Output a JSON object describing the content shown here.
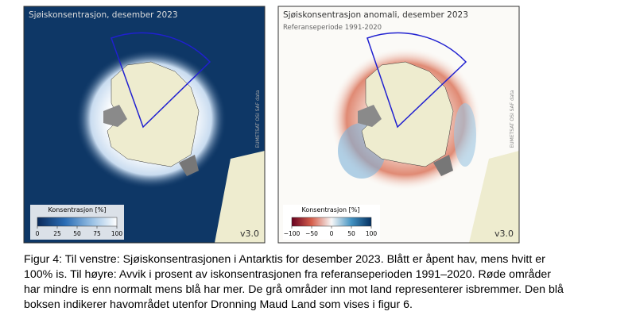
{
  "left_map": {
    "title": "Sjøiskonsentrasjon, desember 2023",
    "colorbar_label": "Konsentrasjon [%]",
    "colorbar_ticks": [
      "0",
      "25",
      "50",
      "75",
      "100"
    ],
    "credit": "EUMETSAT OSI SAF data",
    "version": "v3.0"
  },
  "right_map": {
    "title": "Sjøiskonsentrasjon anomali, desember 2023",
    "subtitle": "Referanseperiode 1991-2020",
    "colorbar_label": "Konsentrasjon [%]",
    "colorbar_ticks": [
      "−100",
      "−50",
      "0",
      "50",
      "100"
    ],
    "credit": "EUMETSAT OSI SAF data",
    "version": "v3.0"
  },
  "caption": [
    "Figur 4: Til venstre: Sjøiskonsentrasjonen i Antarktis for desember 2023. Blått er åpent hav, mens hvitt er",
    "100% is. Til høyre: Avvik i prosent av iskonsentrasjonen fra referanseperioden 1991–2020. Røde områder",
    "har mindre is enn normalt mens blå har mer. De grå områder inn mot land representerer isbremmer. Den blå",
    "boksen indikerer havområdet utenfor Dronning Maud Land som vises i figur 6."
  ]
}
